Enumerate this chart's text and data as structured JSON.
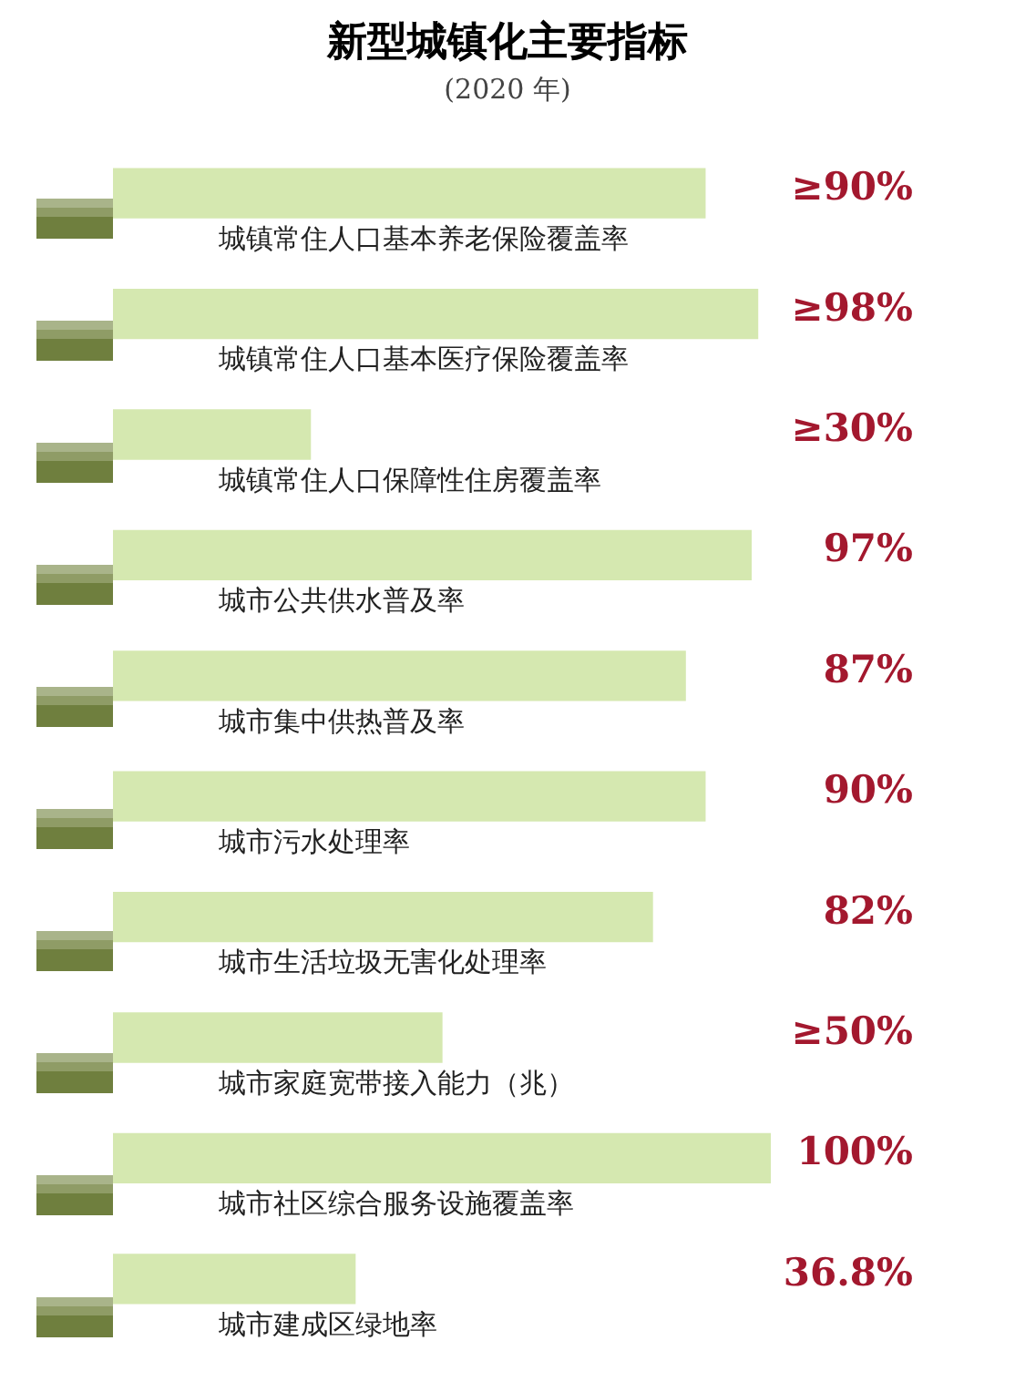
{
  "chart_data": {
    "type": "bar",
    "orientation": "horizontal",
    "title": "新型城镇化主要指标",
    "subtitle": "(2020 年)",
    "categories": [
      "城镇常住人口基本养老保险覆盖率",
      "城镇常住人口基本医疗保险覆盖率",
      "城镇常住人口保障性住房覆盖率",
      "城市公共供水普及率",
      "城市集中供热普及率",
      "城市污水处理率",
      "城市生活垃圾无害化处理率",
      "城市家庭宽带接入能力（兆）",
      "城市社区综合服务设施覆盖率",
      "城市建成区绿地率"
    ],
    "values": [
      90,
      98,
      30,
      97,
      87,
      90,
      82,
      50,
      100,
      36.8
    ],
    "value_labels": [
      "≥90%",
      "≥98%",
      "≥30%",
      "97%",
      "87%",
      "90%",
      "82%",
      "≥50%",
      "100%",
      "36.8%"
    ],
    "color": "#d5e8b0",
    "grid": false,
    "legend": false
  }
}
